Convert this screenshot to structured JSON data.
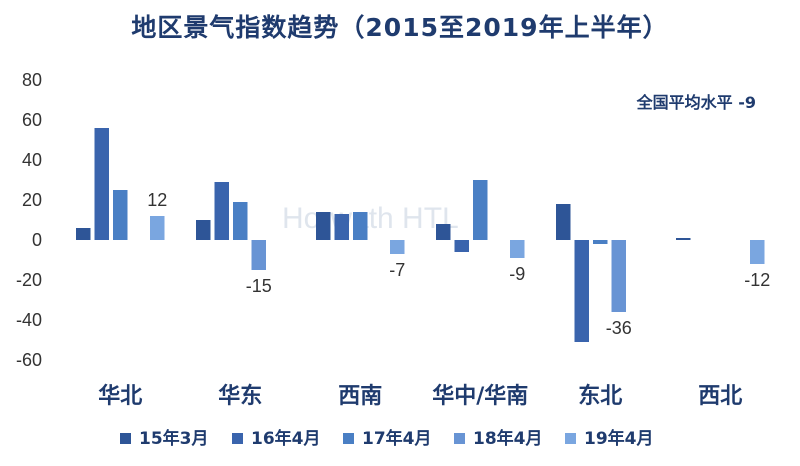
{
  "title": "地区景气指数趋势（2015至2019年上半年）",
  "watermark": "Horwath HTL",
  "chart_data": {
    "type": "bar",
    "categories": [
      "华北",
      "华东",
      "西南",
      "华中/华南",
      "东北",
      "西北"
    ],
    "series": [
      {
        "name": "15年3月",
        "color": "#2e5597",
        "values": [
          6,
          10,
          14,
          8,
          18,
          1
        ]
      },
      {
        "name": "16年4月",
        "color": "#3a64ad",
        "values": [
          56,
          29,
          13,
          -6,
          -51,
          0
        ]
      },
      {
        "name": "17年4月",
        "color": "#4a7fc4",
        "values": [
          25,
          19,
          14,
          30,
          -2,
          0
        ]
      },
      {
        "name": "18年4月",
        "color": "#6894d4",
        "values": [
          0,
          -15,
          0,
          0,
          -36,
          0
        ]
      },
      {
        "name": "19年4月",
        "color": "#7aa6e0",
        "values": [
          12,
          0,
          -7,
          -9,
          0,
          -12
        ]
      }
    ],
    "data_labels": [
      {
        "category": "华北",
        "series": "19年4月",
        "text": "12"
      },
      {
        "category": "华东",
        "series": "18年4月",
        "text": "-15"
      },
      {
        "category": "西南",
        "series": "19年4月",
        "text": "-7"
      },
      {
        "category": "华中/华南",
        "series": "19年4月",
        "text": "-9"
      },
      {
        "category": "东北",
        "series": "18年4月",
        "text": "-36"
      },
      {
        "category": "西北",
        "series": "19年4月",
        "text": "-12"
      }
    ],
    "annotation": "全国平均水平 -9",
    "yticks": [
      "80",
      "60",
      "40",
      "20",
      "0",
      "-20",
      "-40",
      "-60"
    ],
    "ylim": [
      -60,
      80
    ],
    "grid": false,
    "legend_position": "bottom",
    "xlabel": "",
    "ylabel": ""
  }
}
